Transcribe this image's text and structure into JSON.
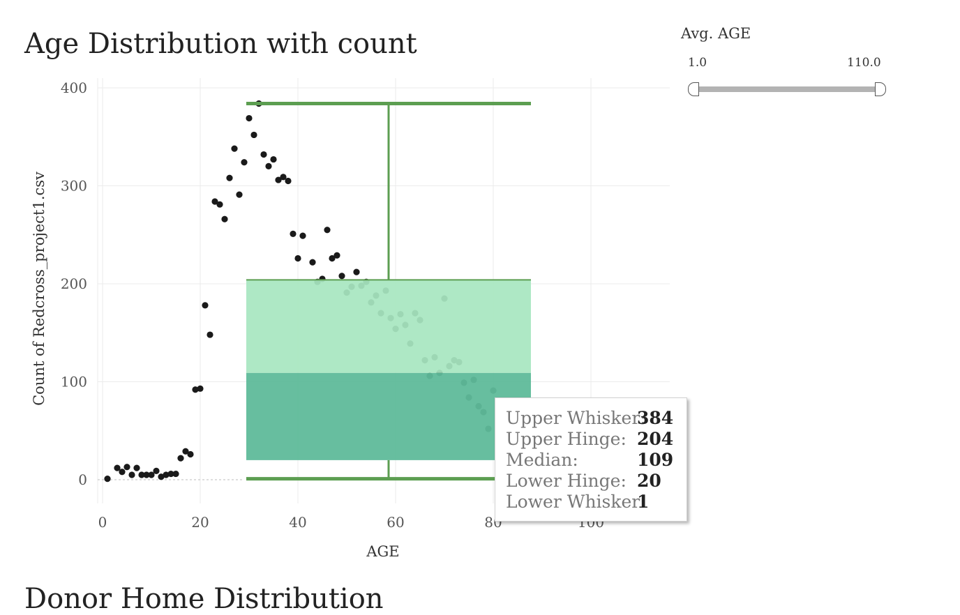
{
  "chart_data": {
    "type": "scatter",
    "title": "Age Distribution with count",
    "xlabel": "AGE",
    "ylabel": "Count of Redcross_project1.csv",
    "xlim": [
      -2,
      117
    ],
    "ylim": [
      -25,
      410
    ],
    "xticks": [
      0,
      20,
      40,
      60,
      80,
      100
    ],
    "xtick_labels": [
      "0",
      "20",
      "40",
      "60",
      "80",
      "100"
    ],
    "yticks": [
      0,
      100,
      200,
      300,
      400
    ],
    "ytick_labels": [
      "0",
      "100",
      "200",
      "300",
      "400"
    ],
    "grid": true,
    "points": [
      [
        1,
        1
      ],
      [
        3,
        12
      ],
      [
        4,
        8
      ],
      [
        5,
        13
      ],
      [
        6,
        5
      ],
      [
        7,
        12
      ],
      [
        8,
        5
      ],
      [
        9,
        5
      ],
      [
        10,
        5
      ],
      [
        11,
        9
      ],
      [
        12,
        3
      ],
      [
        13,
        5
      ],
      [
        14,
        6
      ],
      [
        15,
        6
      ],
      [
        16,
        22
      ],
      [
        17,
        29
      ],
      [
        18,
        26
      ],
      [
        19,
        92
      ],
      [
        20,
        93
      ],
      [
        21,
        178
      ],
      [
        22,
        148
      ],
      [
        23,
        284
      ],
      [
        24,
        281
      ],
      [
        25,
        266
      ],
      [
        26,
        308
      ],
      [
        27,
        338
      ],
      [
        28,
        291
      ],
      [
        29,
        324
      ],
      [
        30,
        369
      ],
      [
        31,
        352
      ],
      [
        32,
        384
      ],
      [
        33,
        332
      ],
      [
        34,
        320
      ],
      [
        35,
        327
      ],
      [
        36,
        306
      ],
      [
        37,
        309
      ],
      [
        38,
        305
      ],
      [
        39,
        251
      ],
      [
        40,
        226
      ],
      [
        41,
        249
      ],
      [
        43,
        222
      ],
      [
        44,
        202
      ],
      [
        45,
        205
      ],
      [
        46,
        255
      ],
      [
        47,
        226
      ],
      [
        48,
        229
      ],
      [
        49,
        208
      ],
      [
        50,
        191
      ],
      [
        51,
        197
      ],
      [
        52,
        212
      ],
      [
        53,
        198
      ],
      [
        54,
        202
      ],
      [
        55,
        181
      ],
      [
        56,
        188
      ],
      [
        57,
        170
      ],
      [
        58,
        193
      ],
      [
        59,
        165
      ],
      [
        60,
        154
      ],
      [
        61,
        169
      ],
      [
        62,
        158
      ],
      [
        63,
        139
      ],
      [
        64,
        170
      ],
      [
        65,
        163
      ],
      [
        66,
        122
      ],
      [
        67,
        106
      ],
      [
        68,
        125
      ],
      [
        69,
        109
      ],
      [
        70,
        185
      ],
      [
        71,
        116
      ],
      [
        72,
        122
      ],
      [
        73,
        120
      ],
      [
        74,
        99
      ],
      [
        75,
        84
      ],
      [
        76,
        102
      ],
      [
        77,
        75
      ],
      [
        78,
        69
      ],
      [
        79,
        52
      ],
      [
        80,
        91
      ],
      [
        81,
        44
      ]
    ],
    "box": {
      "x_range": [
        29,
        88
      ],
      "lower_whisker": 1,
      "lower_hinge": 20,
      "median": 109,
      "upper_hinge": 204,
      "upper_whisker": 384
    },
    "colors": {
      "points": "#1a1a1a",
      "whisker": "#5c9e51",
      "upper_box": "#a8e6c1",
      "lower_box": "#5fba9a",
      "grid": "#ebebeb"
    }
  },
  "tooltip": {
    "rows": [
      {
        "label": "Upper Whisker:",
        "value": "384"
      },
      {
        "label": "Upper Hinge:",
        "value": "204"
      },
      {
        "label": "Median:",
        "value": "109"
      },
      {
        "label": "Lower Hinge:",
        "value": "20"
      },
      {
        "label": "Lower Whisker:",
        "value": "1"
      }
    ]
  },
  "filter": {
    "title": "Avg. AGE",
    "min_label": "1.0",
    "max_label": "110.0",
    "range": [
      1.0,
      110.0
    ]
  },
  "next_section": {
    "title": "Donor Home Distribution"
  }
}
